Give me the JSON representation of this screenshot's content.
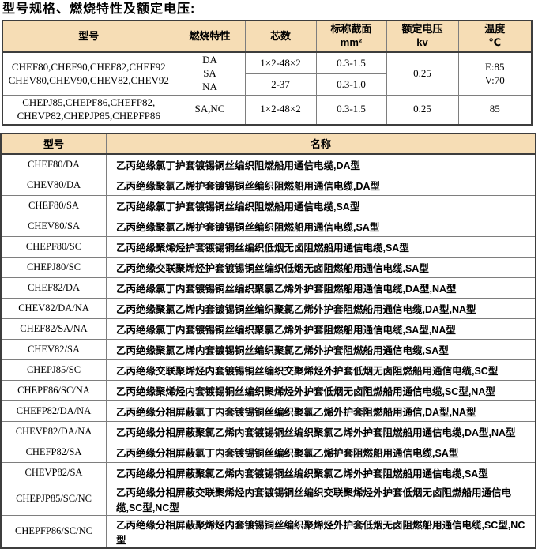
{
  "page_title": "型号规格、燃烧特性及额定电压:",
  "colors": {
    "header_bg": "#f6ddb5",
    "border_dark": "#3d3d3d",
    "border_light": "#7e7e7e",
    "text": "#000000",
    "page_bg": "#ffffff"
  },
  "spec_table": {
    "headers": {
      "model": "型号",
      "burning": "燃烧特性",
      "cores": "芯数",
      "section": "标称截面\nmm²",
      "voltage": "额定电压\nkv",
      "temp": "温度\n℃"
    },
    "group1": {
      "models": "CHEF80,CHEF90,CHEF82,CHEF92\nCHEV80,CHEV90,CHEV82,CHEV92",
      "burning": "DA\nSA\nNA",
      "cores_1": "1×2-48×2",
      "section_1": "0.3-1.5",
      "cores_2": "2-37",
      "section_2": "0.3-1.0",
      "voltage": "0.25",
      "temp": "E:85\nV:70"
    },
    "group2": {
      "models": "CHEPJ85,CHEPF86,CHEFP82,\nCHEVP82,CHEPJP85,CHEPFP86",
      "burning": "SA,NC",
      "cores": "1×2-48×2",
      "section": "0.3-1.5",
      "voltage": "0.25",
      "temp": "85"
    }
  },
  "name_table": {
    "headers": {
      "model": "型号",
      "name": "名称"
    },
    "rows": [
      {
        "model": "CHEF80/DA",
        "name": "乙丙绝缘氯丁护套镀锡铜丝编织阻燃船用通信电缆,DA型"
      },
      {
        "model": "CHEV80/DA",
        "name": "乙丙绝缘聚氯乙烯护套镀锡铜丝编织阻燃船用通信电缆,DA型"
      },
      {
        "model": "CHEF80/SA",
        "name": "乙丙绝缘氯丁护套镀锡铜丝编织阻燃船用通信电缆,SA型"
      },
      {
        "model": "CHEV80/SA",
        "name": "乙丙绝缘聚氯乙烯护套镀锡铜丝编织阻燃船用通信电缆,SA型"
      },
      {
        "model": "CHEPF80/SC",
        "name": "乙丙绝缘聚烯烃护套镀锡铜丝编织低烟无卤阻燃船用通信电缆,SA型"
      },
      {
        "model": "CHEPJ80/SC",
        "name": "乙丙绝缘交联聚烯烃护套镀锡铜丝编织低烟无卤阻燃船用通信电缆,SA型"
      },
      {
        "model": "CHEF82/DA",
        "name": "乙丙绝缘氯丁内套镀锡铜丝编织聚氯乙烯外护套阻燃船用通信电缆,DA型,NA型"
      },
      {
        "model": "CHEV82/DA/NA",
        "name": "乙丙绝缘聚氯乙烯内套镀锡铜丝编织聚氯乙烯外护套阻燃船用通信电缆,DA型,NA型"
      },
      {
        "model": "CHEF82/SA/NA",
        "name": "乙丙绝缘氯丁内套镀锡铜丝编织聚氯乙烯外护套阻燃船用通信电缆,SA型,NA型"
      },
      {
        "model": "CHEV82/SA",
        "name": "乙丙绝缘聚氯乙烯内套镀锡铜丝编织聚氯乙烯外护套阻燃船用通信电缆,SA型"
      },
      {
        "model": "CHEPJ85/SC",
        "name": "乙丙绝缘交联聚烯烃内套镀锡铜丝编织交聚烯烃外护套低烟无卤阻燃船用通信电缆,SC型"
      },
      {
        "model": "CHEPF86/SC/NA",
        "name": "乙丙绝缘聚烯烃内套镀锡铜丝编织聚烯烃外护套低烟无卤阻燃船用通信电缆,SC型,NA型"
      },
      {
        "model": "CHEFP82/DA/NA",
        "name": "乙丙绝缘分相屏蔽氯丁内套镀锡铜丝编织聚氯乙烯外护套阻燃船用通信,DA型,NA型"
      },
      {
        "model": "CHEVP82/DA/NA",
        "name": "乙丙绝缘分相屏蔽聚氯乙烯内套镀锡铜丝编织聚氯乙烯外护套阻燃船用通信电缆,DA型,NA型"
      },
      {
        "model": "CHEFP82/SA",
        "name": "乙丙绝缘分相屏蔽氯丁内套镀锡铜丝编织聚氯乙烯护套阻燃船用通信电缆,SA型"
      },
      {
        "model": "CHEVP82/SA",
        "name": "乙丙绝缘分相屏蔽聚氯乙烯内套镀锡铜丝编织聚氯乙烯外护套阻燃船用通信电缆,SA型"
      },
      {
        "model": "CHEPJP85/SC/NC",
        "name": "乙丙绝缘分相屏蔽交联聚烯烃内套镀锡铜丝编织交联聚烯烃外护套低烟无卤阻燃船用通信电缆,SC型,NC型"
      },
      {
        "model": "CHEPFP86/SC/NC",
        "name": "乙丙绝缘分相屏蔽聚烯烃内套镀锡铜丝编织聚烯烃外护套低烟无卤阻燃船用通信电缆,SC型,NC型"
      }
    ]
  }
}
